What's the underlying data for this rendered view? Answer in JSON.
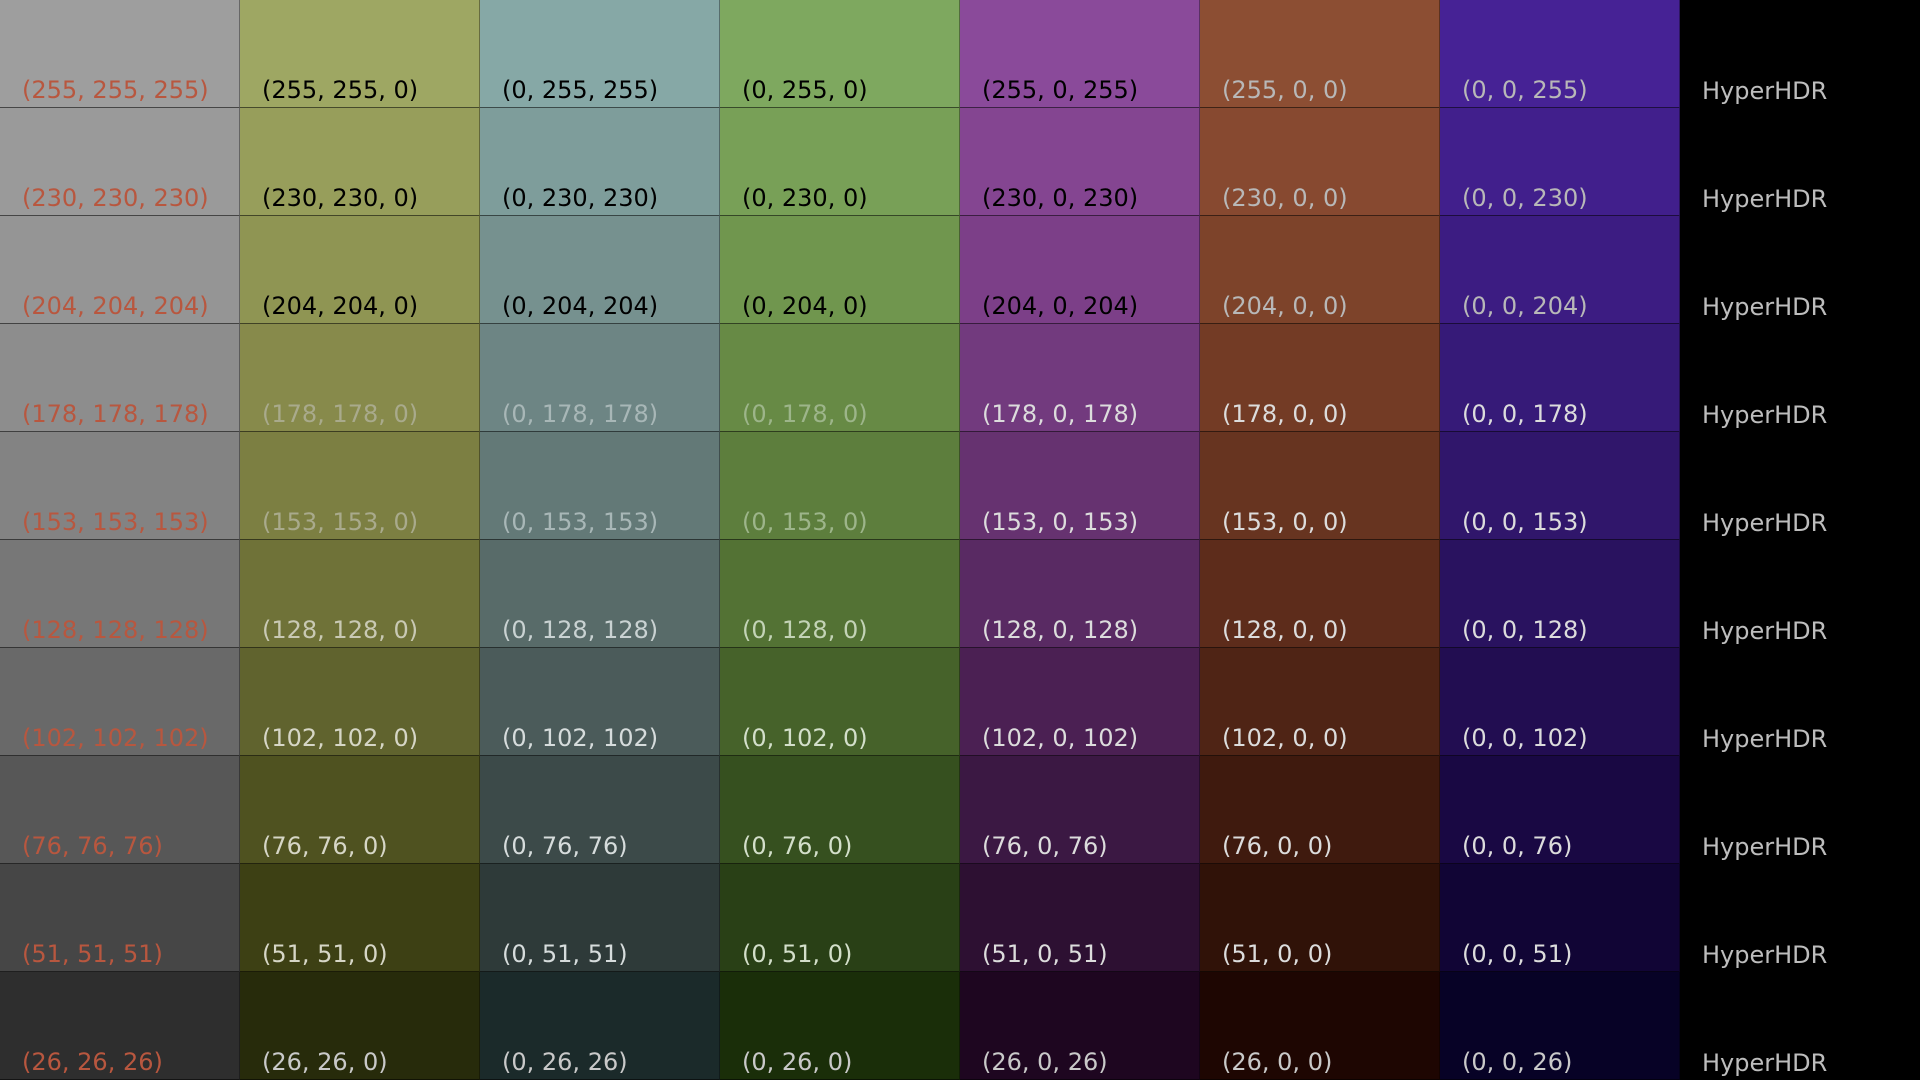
{
  "brand_label": "HyperHDR",
  "levels": [
    255,
    230,
    204,
    178,
    153,
    128,
    102,
    76,
    51,
    26
  ],
  "columns": [
    {
      "id": "white",
      "channels": [
        1,
        1,
        1
      ],
      "display_hex": [
        "#9e9e9e",
        "#9a9a9a",
        "#959595",
        "#8d8d8d",
        "#838383",
        "#777777",
        "#696969",
        "#575757",
        "#464646",
        "#2e2e2e"
      ],
      "text_color": "#b8573f"
    },
    {
      "id": "yellow",
      "channels": [
        1,
        1,
        0
      ],
      "display_hex": [
        "#9ea763",
        "#979e5b",
        "#8f9553",
        "#878a4b",
        "#7c7f42",
        "#6f7238",
        "#60632e",
        "#4f5220",
        "#3d4014",
        "#272b0b"
      ],
      "text_color_rows": [
        "#000000",
        "#000000",
        "#000000",
        "#a9aa8c",
        "#a9aa8c",
        "#c9c9b4",
        "#d6d6c6",
        "#d6d6c6",
        "#d6d6c6",
        "#c9c9c9"
      ]
    },
    {
      "id": "cyan",
      "channels": [
        0,
        1,
        1
      ],
      "display_hex": [
        "#86a8a6",
        "#7e9d9b",
        "#76918f",
        "#6d8584",
        "#637977",
        "#586b69",
        "#4b5b5a",
        "#3c4a49",
        "#2e3a39",
        "#1b2a2a"
      ],
      "text_color_rows": [
        "#000000",
        "#000000",
        "#000000",
        "#a8b7b7",
        "#a8b7b7",
        "#c9d2d2",
        "#d6dcdc",
        "#d6dcdc",
        "#d6dcdc",
        "#c9c9c9"
      ]
    },
    {
      "id": "green",
      "channels": [
        0,
        1,
        0
      ],
      "display_hex": [
        "#7ea85f",
        "#78a057",
        "#70964e",
        "#678a45",
        "#5d7e3d",
        "#537234",
        "#46622a",
        "#36501f",
        "#294016",
        "#1a2e09"
      ],
      "text_color_rows": [
        "#000000",
        "#000000",
        "#000000",
        "#9db58a",
        "#9db58a",
        "#c3d3b6",
        "#d3dfca",
        "#d3dfca",
        "#d3dfca",
        "#c9c9c9"
      ]
    },
    {
      "id": "magenta",
      "channels": [
        1,
        0,
        1
      ],
      "display_hex": [
        "#8a4a9a",
        "#844591",
        "#7c3f88",
        "#723a7e",
        "#663270",
        "#592a63",
        "#4b2053",
        "#3b1843",
        "#2d1032",
        "#1e0620"
      ],
      "text_color_rows": [
        "#000000",
        "#000000",
        "#000000",
        "#dcdcdc",
        "#dcdcdc",
        "#dcdcdc",
        "#dcdcdc",
        "#dcdcdc",
        "#dcdcdc",
        "#c9c9c9"
      ]
    },
    {
      "id": "red",
      "channels": [
        1,
        0,
        0
      ],
      "display_hex": [
        "#8c4e33",
        "#874930",
        "#7d432a",
        "#733b25",
        "#673420",
        "#5d2c1b",
        "#4f2415",
        "#3f1a0e",
        "#301208",
        "#1e0602"
      ],
      "text_color_rows": [
        "#b8b8b8",
        "#b8b8b8",
        "#b8b8b8",
        "#dcdcdc",
        "#dcdcdc",
        "#dcdcdc",
        "#dcdcdc",
        "#dcdcdc",
        "#dcdcdc",
        "#c9c9c9"
      ]
    },
    {
      "id": "blue",
      "channels": [
        0,
        0,
        1
      ],
      "display_hex": [
        "#462295",
        "#411f8c",
        "#3c1c82",
        "#361a78",
        "#30166b",
        "#29125f",
        "#220d51",
        "#190843",
        "#110535",
        "#070226"
      ],
      "text_color_rows": [
        "#b8b8b8",
        "#b8b8b8",
        "#b8b8b8",
        "#dcdcdc",
        "#dcdcdc",
        "#dcdcdc",
        "#dcdcdc",
        "#dcdcdc",
        "#dcdcdc",
        "#c9c9c9"
      ]
    }
  ],
  "labels": [
    [
      "(255, 255, 255)",
      "(230, 230, 230)",
      "(204, 204, 204)",
      "(178, 178, 178)",
      "(153, 153, 153)",
      "(128, 128, 128)",
      "(102, 102, 102)",
      "(76, 76, 76)",
      "(51, 51, 51)",
      "(26, 26, 26)"
    ],
    [
      "(255, 255, 0)",
      "(230, 230, 0)",
      "(204, 204, 0)",
      "(178, 178, 0)",
      "(153, 153, 0)",
      "(128, 128, 0)",
      "(102, 102, 0)",
      "(76, 76, 0)",
      "(51, 51, 0)",
      "(26, 26, 0)"
    ],
    [
      "(0, 255, 255)",
      "(0, 230, 230)",
      "(0, 204, 204)",
      "(0, 178, 178)",
      "(0, 153, 153)",
      "(0, 128, 128)",
      "(0, 102, 102)",
      "(0, 76, 76)",
      "(0, 51, 51)",
      "(0, 26, 26)"
    ],
    [
      "(0, 255, 0)",
      "(0, 230, 0)",
      "(0, 204, 0)",
      "(0, 178, 0)",
      "(0, 153, 0)",
      "(0, 128, 0)",
      "(0, 102, 0)",
      "(0, 76, 0)",
      "(0, 51, 0)",
      "(0, 26, 0)"
    ],
    [
      "(255, 0, 255)",
      "(230, 0, 230)",
      "(204, 0, 204)",
      "(178, 0, 178)",
      "(153, 0, 153)",
      "(128, 0, 128)",
      "(102, 0, 102)",
      "(76, 0, 76)",
      "(51, 0, 51)",
      "(26, 0, 26)"
    ],
    [
      "(255, 0, 0)",
      "(230, 0, 0)",
      "(204, 0, 0)",
      "(178, 0, 0)",
      "(153, 0, 0)",
      "(128, 0, 0)",
      "(102, 0, 0)",
      "(76, 0, 0)",
      "(51, 0, 0)",
      "(26, 0, 0)"
    ],
    [
      "(0, 0, 255)",
      "(0, 0, 230)",
      "(0, 0, 204)",
      "(0, 0, 178)",
      "(0, 0, 153)",
      "(0, 0, 128)",
      "(0, 0, 102)",
      "(0, 0, 76)",
      "(0, 0, 51)",
      "(0, 0, 26)"
    ]
  ]
}
